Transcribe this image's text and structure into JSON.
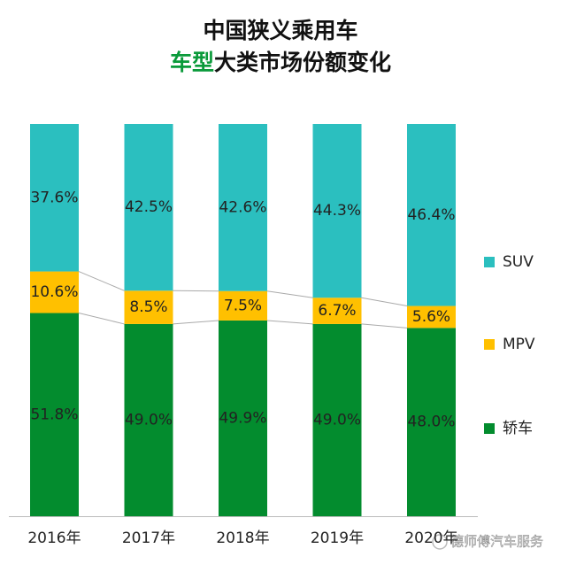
{
  "chart_data": {
    "type": "stacked_bar",
    "title": "中国狭义乘用车",
    "subtitle_highlight": "车型",
    "subtitle": "大类市场份额变化",
    "categories": [
      "2016年",
      "2017年",
      "2018年",
      "2019年",
      "2020年"
    ],
    "series": [
      {
        "name": "轿车",
        "color": "#038c2e",
        "values": [
          51.8,
          49.0,
          49.9,
          49.0,
          48.0
        ],
        "value_labels": [
          "51.8%",
          "49.0%",
          "49.9%",
          "49.0%",
          "48.0%"
        ]
      },
      {
        "name": "MPV",
        "color": "#ffc000",
        "values": [
          10.6,
          8.5,
          7.5,
          6.7,
          5.6
        ],
        "value_labels": [
          "10.6%",
          "8.5%",
          "7.5%",
          "6.7%",
          "5.6%"
        ]
      },
      {
        "name": "SUV",
        "color": "#2bbfbf",
        "values": [
          37.6,
          42.5,
          42.6,
          44.3,
          46.4
        ],
        "value_labels": [
          "37.6%",
          "42.5%",
          "42.6%",
          "44.3%",
          "46.4%"
        ]
      }
    ],
    "ylim": [
      0,
      100
    ],
    "connectors": true,
    "legend": "right",
    "watermark": "德师傅汽车服务"
  }
}
